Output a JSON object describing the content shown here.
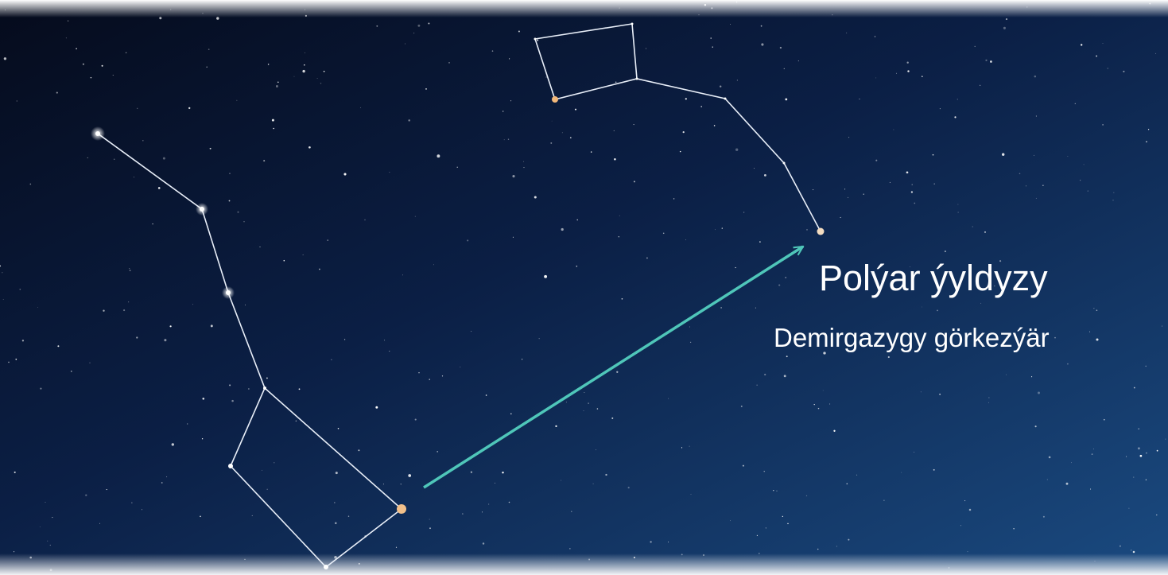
{
  "labels": {
    "title": "Polýar ýyldyzy",
    "subtitle": "Demirgazygy görkezýär"
  }
}
